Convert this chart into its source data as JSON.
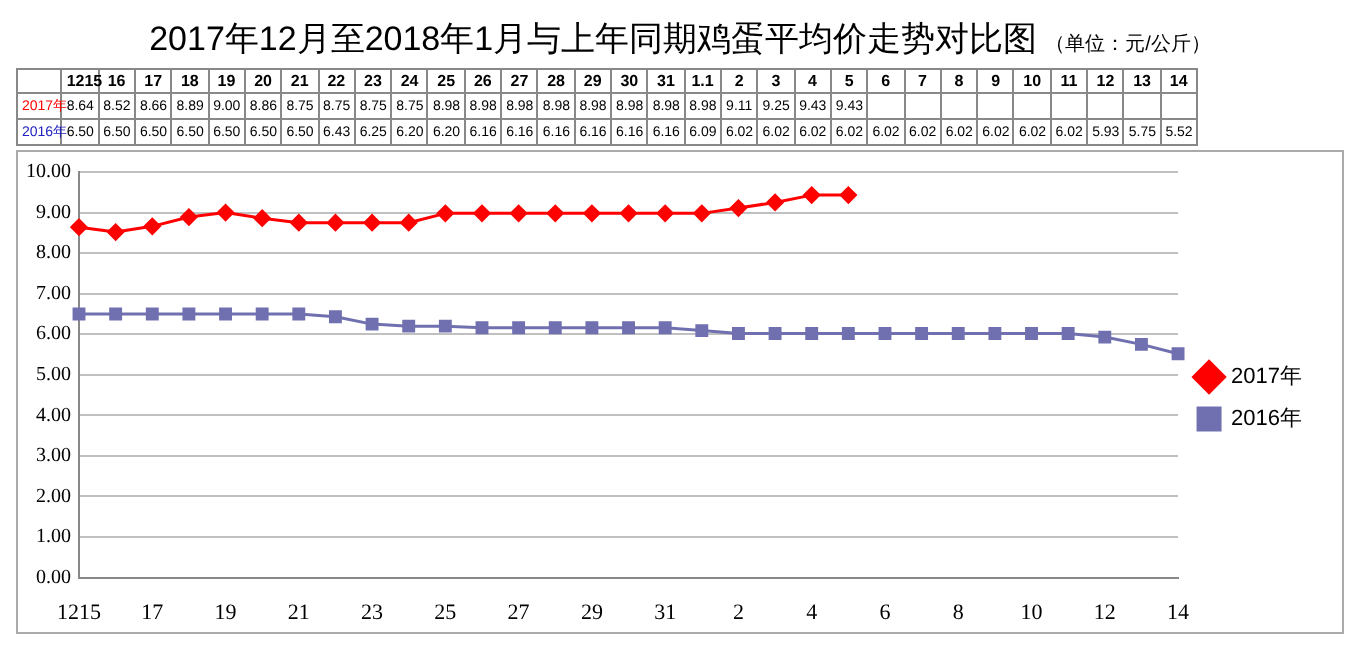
{
  "chart_data": {
    "type": "line",
    "title": "2017年12月至2018年1月与上年同期鸡蛋平均价走势对比图",
    "subtitle": "（单位：元/公斤）",
    "categories": [
      "1215",
      "16",
      "17",
      "18",
      "19",
      "20",
      "21",
      "22",
      "23",
      "24",
      "25",
      "26",
      "27",
      "28",
      "29",
      "30",
      "31",
      "1.1",
      "2",
      "3",
      "4",
      "5",
      "6",
      "7",
      "8",
      "9",
      "10",
      "11",
      "12",
      "13",
      "14"
    ],
    "series": [
      {
        "name": "2017年",
        "color": "#ff0000",
        "marker": "diamond",
        "values": [
          8.64,
          8.52,
          8.66,
          8.89,
          9.0,
          8.86,
          8.75,
          8.75,
          8.75,
          8.75,
          8.98,
          8.98,
          8.98,
          8.98,
          8.98,
          8.98,
          8.98,
          8.98,
          9.11,
          9.25,
          9.43,
          9.43,
          null,
          null,
          null,
          null,
          null,
          null,
          null,
          null,
          null
        ],
        "value_labels": [
          "8.64",
          "8.52",
          "8.66",
          "8.89",
          "9.00",
          "8.86",
          "8.75",
          "8.75",
          "8.75",
          "8.75",
          "8.98",
          "8.98",
          "8.98",
          "8.98",
          "8.98",
          "8.98",
          "8.98",
          "8.98",
          "9.11",
          "9.25",
          "9.43",
          "9.43",
          null,
          null,
          null,
          null,
          null,
          null,
          null,
          null,
          null
        ]
      },
      {
        "name": "2016年",
        "color": "#7070b0",
        "marker": "square",
        "values": [
          6.5,
          6.5,
          6.5,
          6.5,
          6.5,
          6.5,
          6.5,
          6.43,
          6.25,
          6.2,
          6.2,
          6.16,
          6.16,
          6.16,
          6.16,
          6.16,
          6.16,
          6.09,
          6.02,
          6.02,
          6.02,
          6.02,
          6.02,
          6.02,
          6.02,
          6.02,
          6.02,
          6.02,
          5.93,
          5.75,
          5.52
        ],
        "value_labels": [
          "6.50",
          "6.50",
          "6.50",
          "6.50",
          "6.50",
          "6.50",
          "6.50",
          "6.43",
          "6.25",
          "6.20",
          "6.20",
          "6.16",
          "6.16",
          "6.16",
          "6.16",
          "6.16",
          "6.16",
          "6.09",
          "6.02",
          "6.02",
          "6.02",
          "6.02",
          "6.02",
          "6.02",
          "6.02",
          "6.02",
          "6.02",
          "6.02",
          "5.93",
          "5.75",
          "5.52"
        ]
      }
    ],
    "ylim": [
      0,
      10
    ],
    "yticks": [
      {
        "value": 0,
        "label": "0.00"
      },
      {
        "value": 1,
        "label": "1.00"
      },
      {
        "value": 2,
        "label": "2.00"
      },
      {
        "value": 3,
        "label": "3.00"
      },
      {
        "value": 4,
        "label": "4.00"
      },
      {
        "value": 5,
        "label": "5.00"
      },
      {
        "value": 6,
        "label": "6.00"
      },
      {
        "value": 7,
        "label": "7.00"
      },
      {
        "value": 8,
        "label": "8.00"
      },
      {
        "value": 9,
        "label": "9.00"
      },
      {
        "value": 10,
        "label": "10.00"
      }
    ],
    "grid": "y",
    "legend": "right"
  }
}
